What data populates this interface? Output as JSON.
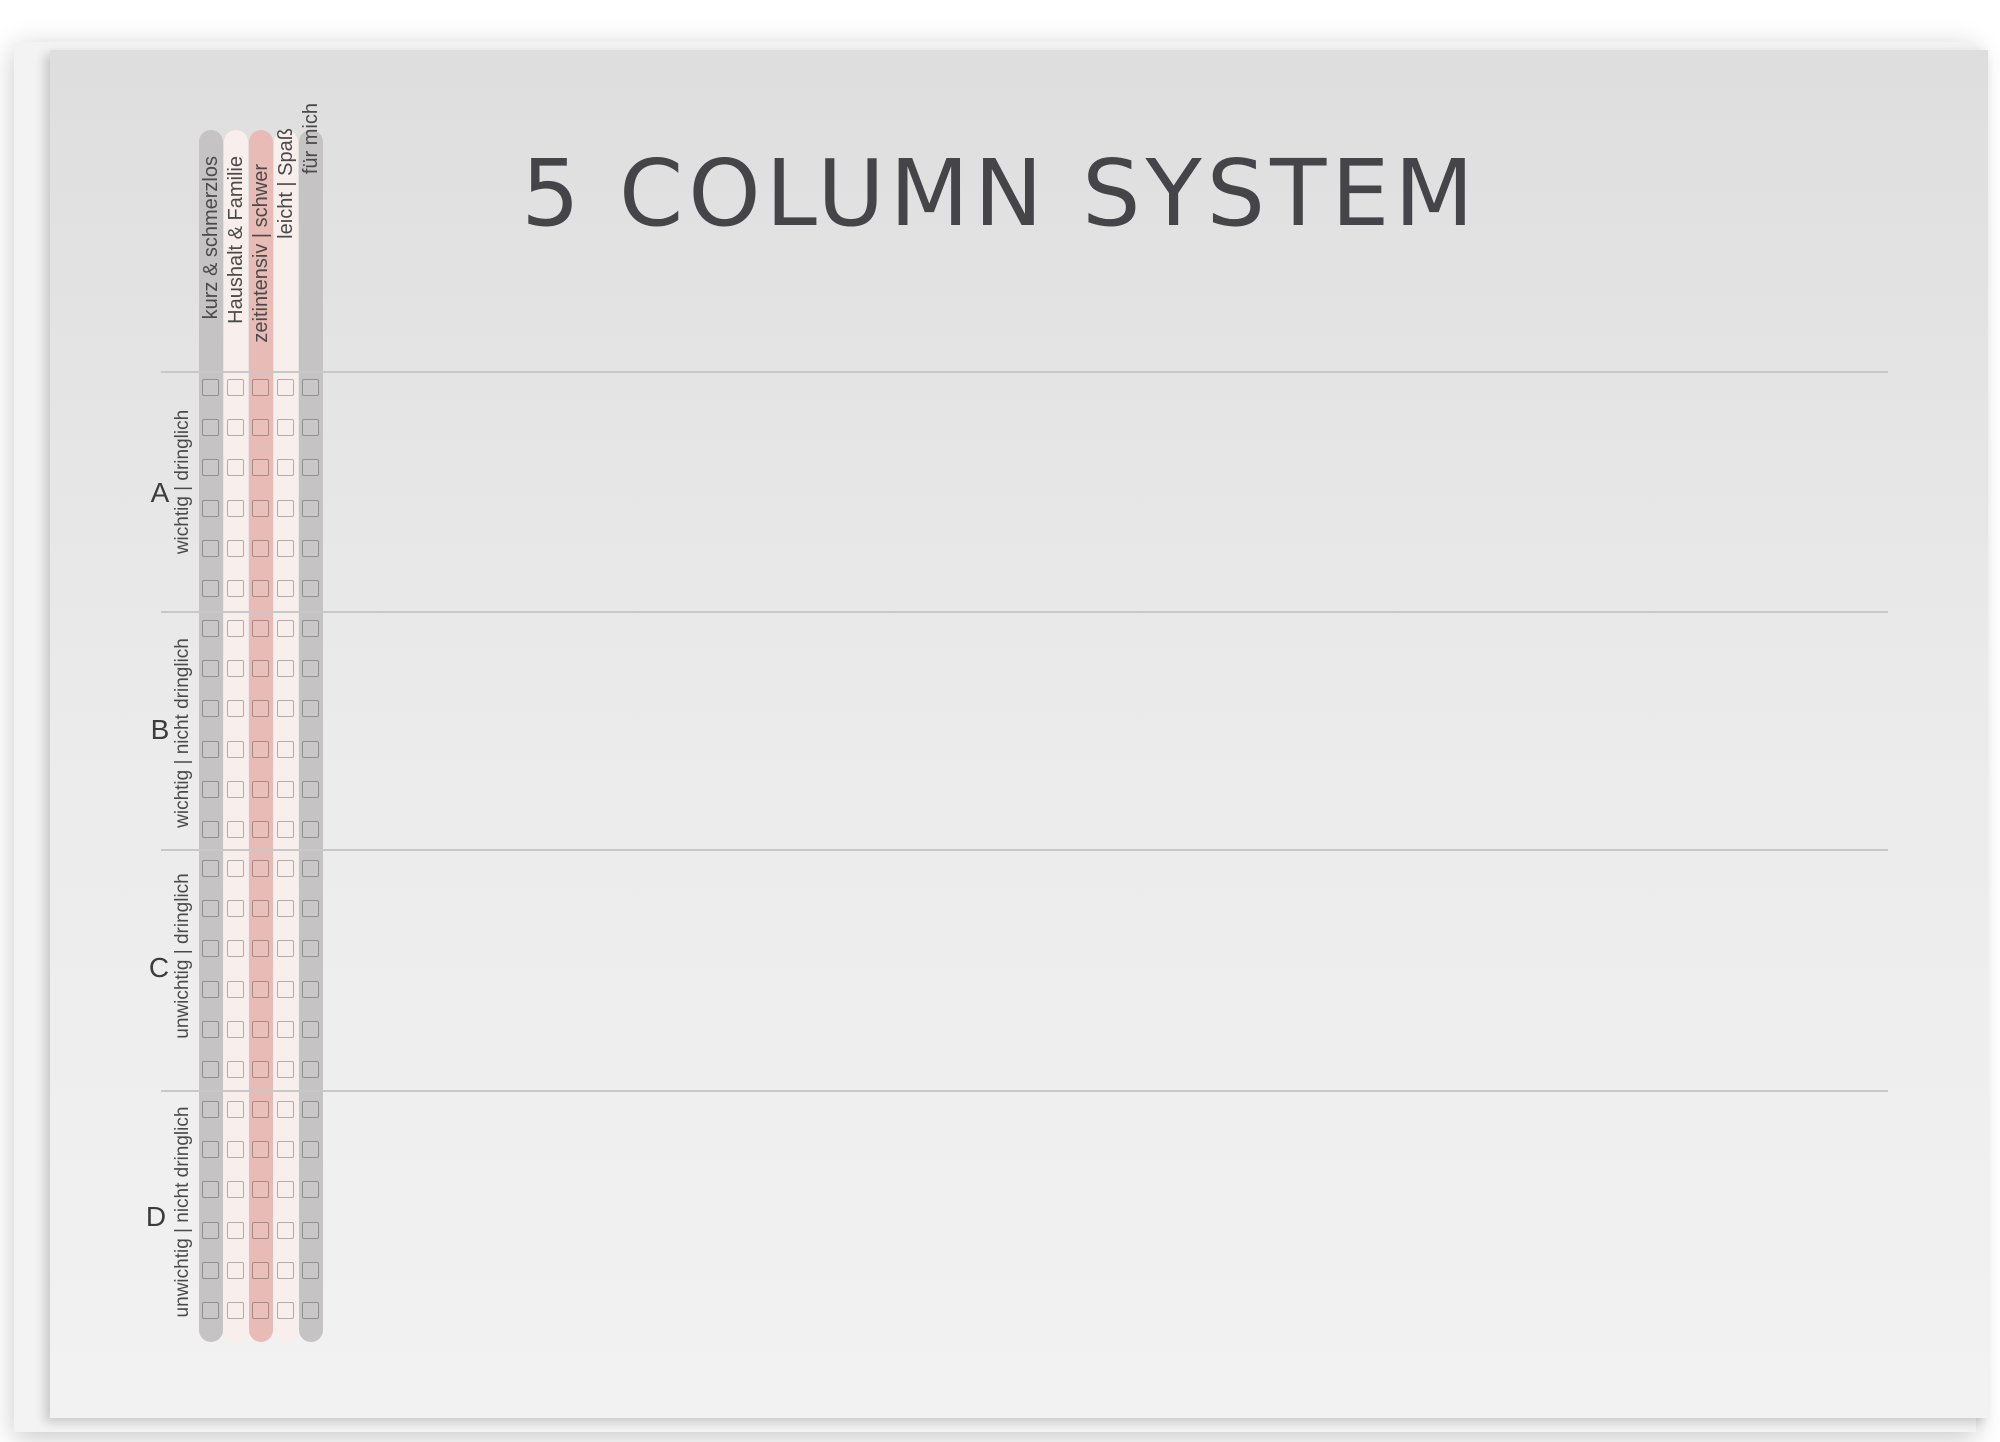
{
  "title": "5 COLUMN SYSTEM",
  "columns": [
    {
      "label": "kurz & schmerzlos",
      "color": "#c5c3c3"
    },
    {
      "label": "Haushalt & Familie",
      "color": "#f8eeec"
    },
    {
      "label": "zeitintensiv | schwer",
      "color": "#e9bbb6"
    },
    {
      "label": "leicht | Spaß",
      "color": "#f8eeec"
    },
    {
      "label": "für mich",
      "color": "#c5c3c3"
    }
  ],
  "sections": [
    {
      "letter": "A",
      "subtitle": "wichtig | dringlich",
      "boxes_per_column": 6
    },
    {
      "letter": "B",
      "subtitle": "wichtig | nicht dringlich",
      "boxes_per_column": 6
    },
    {
      "letter": "C",
      "subtitle": "unwichtig | dringlich",
      "boxes_per_column": 6
    },
    {
      "letter": "D",
      "subtitle": "unwichtig | nicht dringlich",
      "boxes_per_column": 6
    }
  ]
}
